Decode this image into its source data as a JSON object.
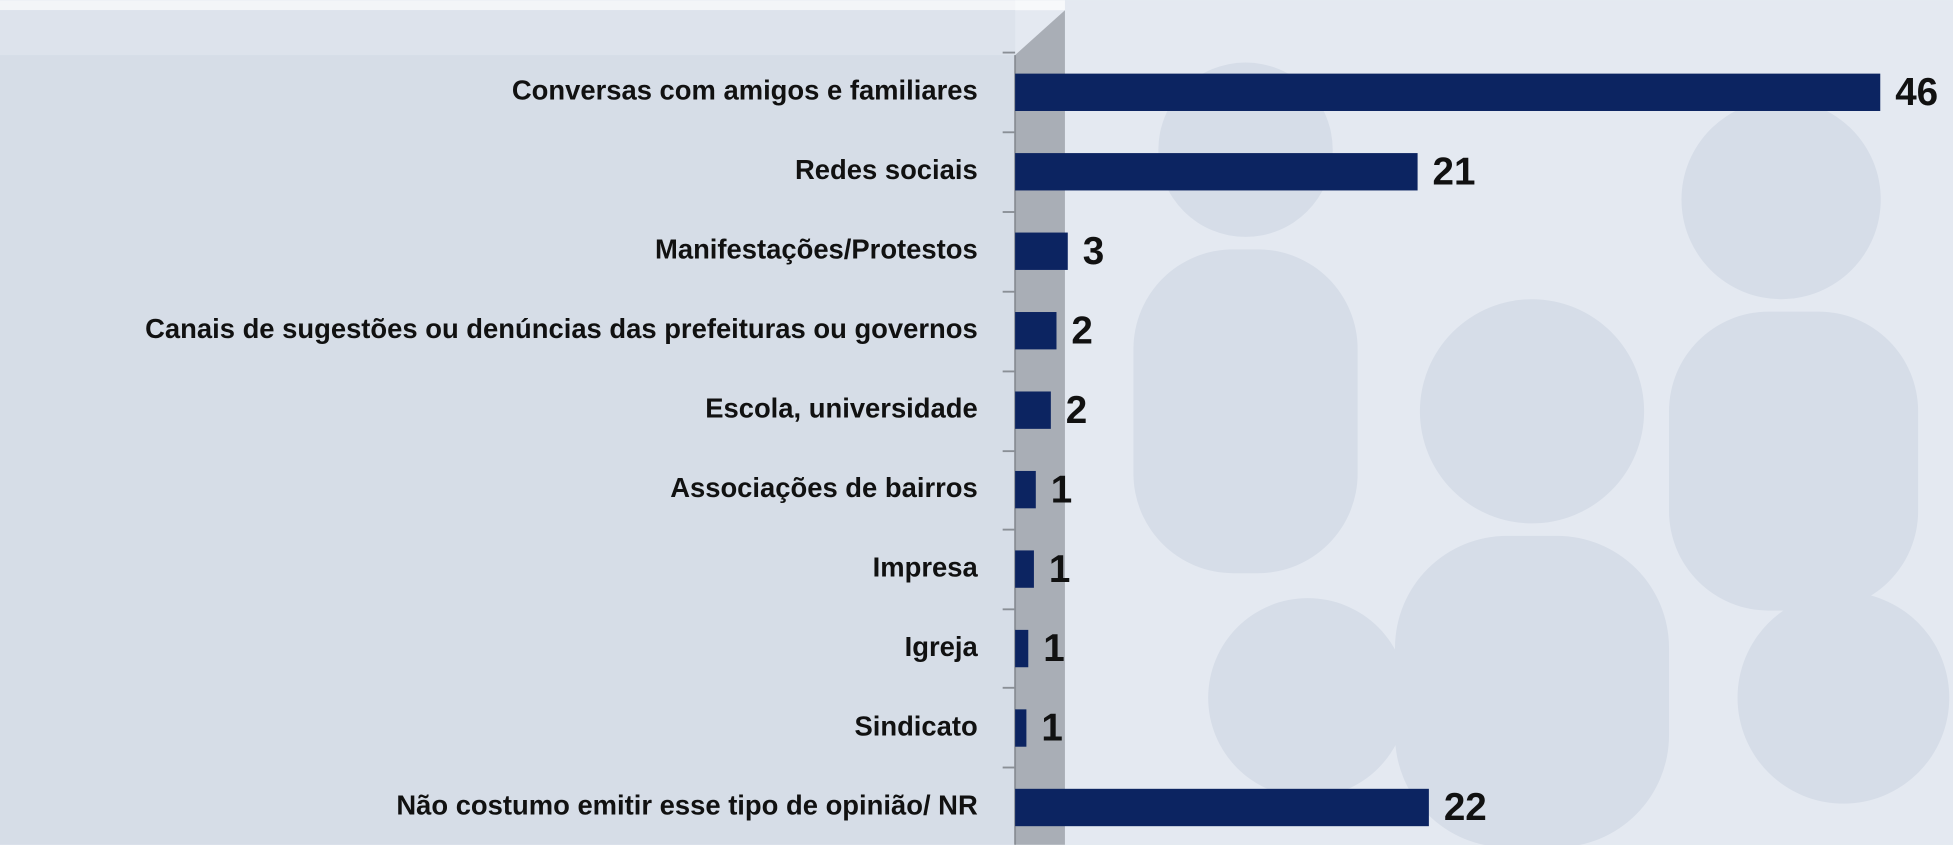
{
  "chart_data": {
    "type": "hbar",
    "categories": [
      "Conversas com amigos e familiares",
      "Redes sociais",
      "Manifestações/Protestos",
      "Canais de sugestões ou denúncias das prefeituras ou governos",
      "Escola, universidade",
      "Associações de bairros",
      "Impresa",
      "Igreja",
      "Sindicato",
      "Não costumo emitir esse tipo de opinião/ NR"
    ],
    "values": [
      46,
      21.4,
      2.8,
      2.2,
      1.9,
      1.1,
      1.0,
      0.7,
      0.6,
      22
    ],
    "value_labels": [
      "46",
      "21",
      "3",
      "2",
      "2",
      "1",
      "1",
      "1",
      "1",
      "22"
    ],
    "color": "#0c2461",
    "xlim": [
      0,
      50
    ]
  }
}
